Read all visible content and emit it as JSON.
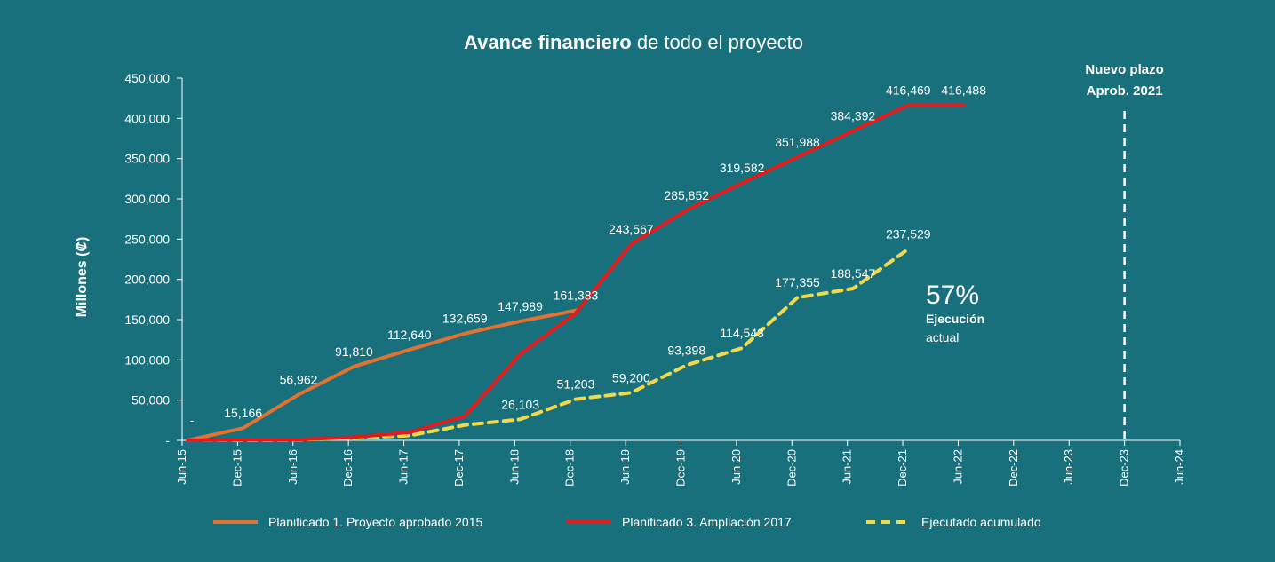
{
  "chart_data": {
    "type": "line",
    "title_bold": "Avance financiero",
    "title_rest": " de todo el proyecto",
    "ylabel": "Millones (₡)",
    "xlabel": "",
    "ylim": [
      0,
      450000
    ],
    "yticks": [
      0,
      50000,
      100000,
      150000,
      200000,
      250000,
      300000,
      350000,
      400000,
      450000
    ],
    "ytick_labels": [
      "-",
      "50,000",
      "100,000",
      "150,000",
      "200,000",
      "250,000",
      "300,000",
      "350,000",
      "400,000",
      "450,000"
    ],
    "categories": [
      "Jun-15",
      "Dec-15",
      "Jun-16",
      "Dec-16",
      "Jun-17",
      "Dec-17",
      "Jun-18",
      "Dec-18",
      "Jun-19",
      "Dec-19",
      "Jun-20",
      "Dec-20",
      "Jun-21",
      "Dec-21",
      "Jun-22",
      "Dec-22",
      "Jun-23",
      "Dec-23",
      "Jun-24"
    ],
    "grid": false,
    "legend_position": "bottom",
    "series": [
      {
        "name": "Planificado 1. Proyecto aprobado 2015",
        "color": "#e2722f",
        "style": "solid",
        "points": [
          [
            0.1,
            0
          ],
          [
            1.1,
            15166
          ],
          [
            2.1,
            56962
          ],
          [
            3.1,
            91810
          ],
          [
            4.1,
            112640
          ],
          [
            5.1,
            132659
          ],
          [
            6.1,
            147989
          ],
          [
            7.1,
            161383
          ]
        ],
        "labels": [
          "",
          "15,166",
          "56,962",
          "91,810",
          "112,640",
          "132,659",
          "147,989",
          "161,383"
        ]
      },
      {
        "name": "Planificado 3. Ampliación 2017",
        "color": "#e3191a",
        "style": "solid",
        "points": [
          [
            0.1,
            0
          ],
          [
            1.1,
            500
          ],
          [
            2.1,
            1000
          ],
          [
            3.1,
            4000
          ],
          [
            4.1,
            10000
          ],
          [
            5.1,
            30000
          ],
          [
            6.1,
            107000
          ],
          [
            7.1,
            158000
          ],
          [
            8.1,
            243567
          ],
          [
            9.1,
            285852
          ],
          [
            10.1,
            319582
          ],
          [
            11.1,
            351988
          ],
          [
            12.1,
            384392
          ],
          [
            13.1,
            416469
          ],
          [
            14.1,
            416488
          ]
        ],
        "labels": [
          "",
          "",
          "",
          "",
          "",
          "",
          "",
          "",
          "243,567",
          "285,852",
          "319,582",
          "351,988",
          "384,392",
          "416,469",
          "416,488"
        ]
      },
      {
        "name": "Ejecutado acumulado",
        "color": "#f2d94c",
        "style": "dashed",
        "points": [
          [
            0.1,
            0
          ],
          [
            1.1,
            0
          ],
          [
            2.1,
            500
          ],
          [
            3.1,
            3000
          ],
          [
            4.1,
            6000
          ],
          [
            5.1,
            19000
          ],
          [
            6.1,
            26103
          ],
          [
            7.1,
            51203
          ],
          [
            8.1,
            59200
          ],
          [
            9.1,
            93398
          ],
          [
            10.1,
            114543
          ],
          [
            11.1,
            177355
          ],
          [
            12.1,
            188547
          ],
          [
            13.1,
            237529
          ]
        ],
        "labels": [
          "",
          "",
          "",
          "",
          "",
          "",
          "26,103",
          "51,203",
          "59,200",
          "93,398",
          "114,543",
          "177,355",
          "188,547",
          "237,529"
        ]
      }
    ],
    "annotations": {
      "percent": "57%",
      "percent_label": "Ejecución",
      "percent_sub": "actual",
      "deadline_line1": "Nuevo plazo",
      "deadline_line2": "Aprob. 2021",
      "deadline_x": 17,
      "stray_dash": "-"
    }
  }
}
